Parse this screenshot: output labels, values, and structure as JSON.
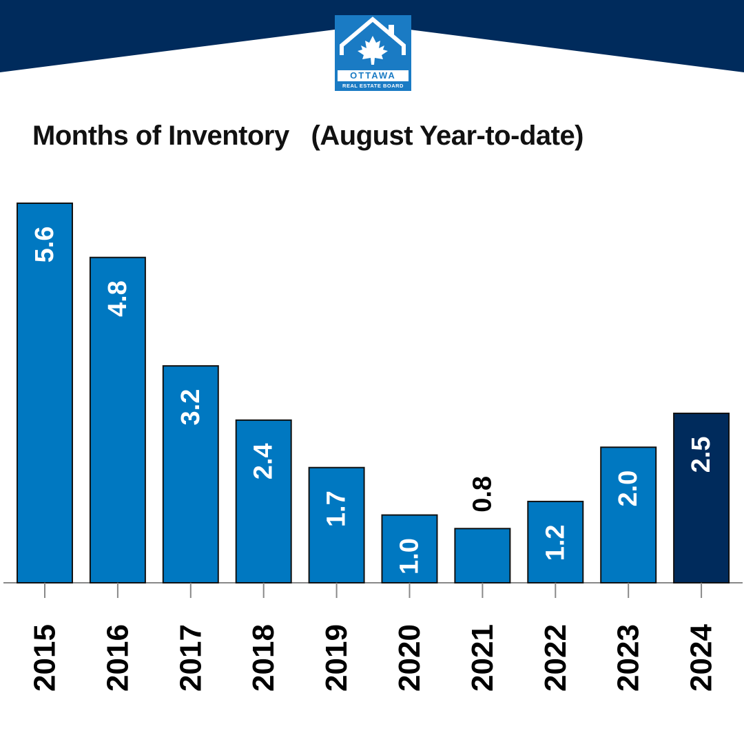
{
  "logo": {
    "name": "OTTAWA",
    "subtitle": "REAL ESTATE BOARD"
  },
  "colors": {
    "header": "#002b5c",
    "bar": "#0078c1",
    "bar_highlight": "#002b5c",
    "label_inside": "#ffffff",
    "label_outside": "#000000"
  },
  "chart_data": {
    "type": "bar",
    "title": "Months of Inventory   (August Year-to-date)",
    "categories": [
      "2015",
      "2016",
      "2017",
      "2018",
      "2019",
      "2020",
      "2021",
      "2022",
      "2023",
      "2024"
    ],
    "values": [
      5.6,
      4.8,
      3.2,
      2.4,
      1.7,
      1.0,
      0.8,
      1.2,
      2.0,
      2.5
    ],
    "value_labels": [
      "5.6",
      "4.8",
      "3.2",
      "2.4",
      "1.7",
      "1.0",
      "0.8",
      "1.2",
      "2.0",
      "2.5"
    ],
    "highlight_category": "2024",
    "xlabel": "",
    "ylabel": "",
    "ylim": [
      0,
      5.6
    ],
    "grid": false,
    "legend": "none"
  }
}
